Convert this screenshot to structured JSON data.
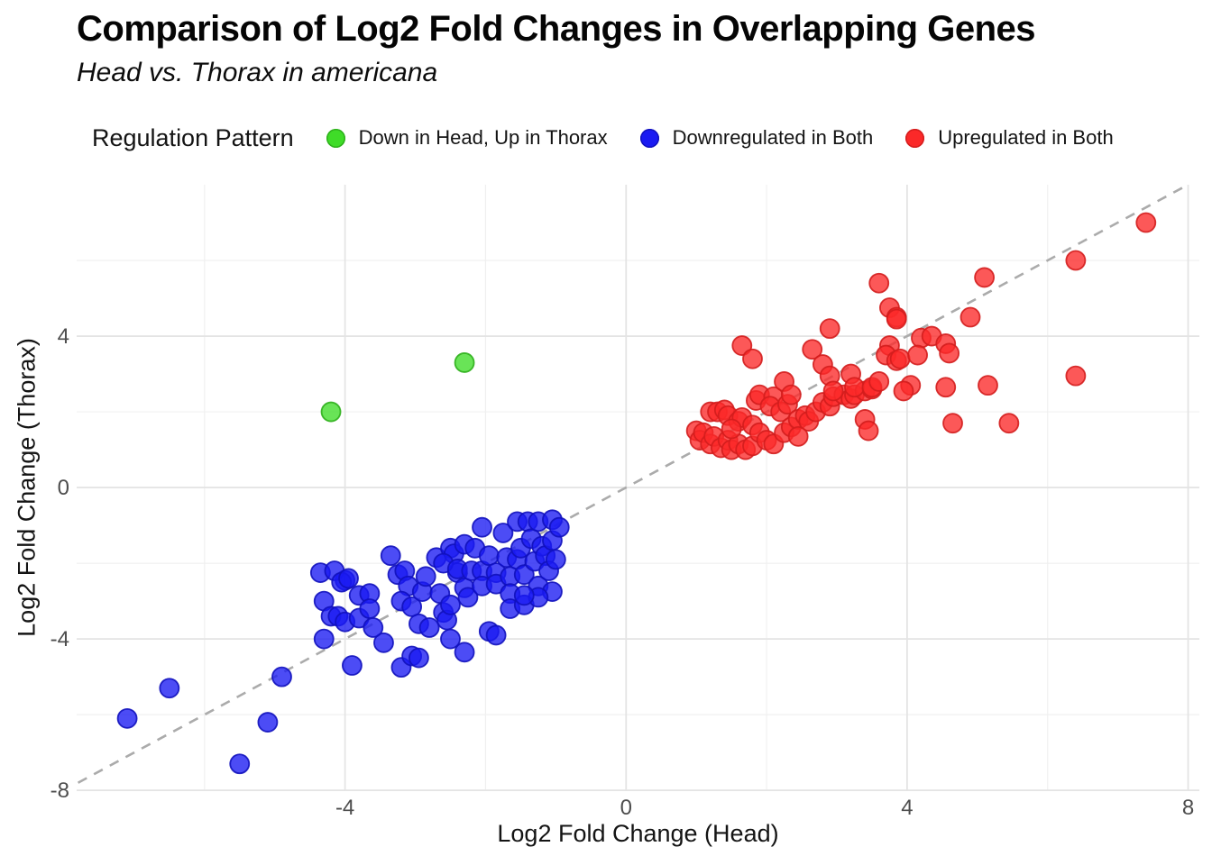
{
  "header": {
    "title": "Comparison of Log2 Fold Changes in Overlapping Genes",
    "subtitle": "Head vs. Thorax in americana"
  },
  "legend": {
    "title": "Regulation Pattern"
  },
  "axes": {
    "x_title": "Log2 Fold Change (Head)",
    "y_title": "Log2 Fold Change (Thorax)"
  },
  "chart_data": {
    "type": "scatter",
    "title": "Comparison of Log2 Fold Changes in Overlapping Genes",
    "subtitle": "Head vs. Thorax in americana",
    "xlabel": "Log2 Fold Change (Head)",
    "ylabel": "Log2 Fold Change (Thorax)",
    "xlim": [
      -7.82,
      8.16
    ],
    "ylim": [
      -8.02,
      8.0
    ],
    "x_ticks": [
      -4,
      0,
      4,
      8
    ],
    "y_ticks": [
      -8,
      -4,
      0,
      4
    ],
    "x_minor_gridlines": [
      -6,
      -2,
      2,
      6
    ],
    "y_minor_gridlines": [
      -6,
      -2,
      2,
      6
    ],
    "grid": true,
    "legend_title": "Regulation Pattern",
    "legend_position": "top",
    "background_color": "#ffffff",
    "major_grid_color": "#e4e4e4",
    "minor_grid_color": "#f0f0f0",
    "reference_line": {
      "type": "identity",
      "slope": 1,
      "intercept": 0,
      "style": "dashed",
      "color": "#ababab"
    },
    "series": [
      {
        "name": "Down in Head, Up in Thorax",
        "color": "#3fdc28",
        "stroke": "#2daf1b",
        "points": [
          [
            -4.2,
            2.0
          ],
          [
            -2.3,
            3.3
          ]
        ]
      },
      {
        "name": "Downregulated in Both",
        "color": "#1a1af2",
        "stroke": "#1111bd",
        "points": [
          [
            -7.1,
            -6.1
          ],
          [
            -6.5,
            -5.3
          ],
          [
            -5.5,
            -7.3
          ],
          [
            -5.1,
            -6.2
          ],
          [
            -4.9,
            -5.0
          ],
          [
            -4.3,
            -4.0
          ],
          [
            -3.9,
            -4.7
          ],
          [
            -3.2,
            -4.75
          ],
          [
            -3.45,
            -4.1
          ],
          [
            -3.05,
            -4.45
          ],
          [
            -2.95,
            -4.5
          ],
          [
            -2.3,
            -4.35
          ],
          [
            -1.95,
            -3.8
          ],
          [
            -2.5,
            -4.0
          ],
          [
            -4.35,
            -2.25
          ],
          [
            -4.0,
            -2.45
          ],
          [
            -4.3,
            -3.0
          ],
          [
            -4.2,
            -3.4
          ],
          [
            -4.1,
            -3.4
          ],
          [
            -4.0,
            -3.55
          ],
          [
            -3.8,
            -2.85
          ],
          [
            -3.8,
            -3.45
          ],
          [
            -4.15,
            -2.2
          ],
          [
            -4.05,
            -2.5
          ],
          [
            -3.95,
            -2.4
          ],
          [
            -3.65,
            -2.8
          ],
          [
            -3.65,
            -3.2
          ],
          [
            -3.6,
            -3.7
          ],
          [
            -3.35,
            -1.8
          ],
          [
            -3.25,
            -2.3
          ],
          [
            -3.15,
            -2.2
          ],
          [
            -3.1,
            -2.6
          ],
          [
            -3.2,
            -3.0
          ],
          [
            -3.05,
            -3.15
          ],
          [
            -2.95,
            -3.6
          ],
          [
            -2.9,
            -2.75
          ],
          [
            -2.85,
            -2.35
          ],
          [
            -2.8,
            -3.7
          ],
          [
            -2.7,
            -1.85
          ],
          [
            -2.65,
            -2.8
          ],
          [
            -2.6,
            -3.3
          ],
          [
            -2.55,
            -3.5
          ],
          [
            -2.5,
            -3.1
          ],
          [
            -2.5,
            -1.6
          ],
          [
            -2.45,
            -1.75
          ],
          [
            -2.4,
            -2.25
          ],
          [
            -2.3,
            -1.5
          ],
          [
            -2.3,
            -2.65
          ],
          [
            -2.25,
            -2.9
          ],
          [
            -2.6,
            -2.0
          ],
          [
            -2.4,
            -2.15
          ],
          [
            -2.2,
            -2.2
          ],
          [
            -2.15,
            -1.6
          ],
          [
            -2.05,
            -1.05
          ],
          [
            -2.05,
            -2.2
          ],
          [
            -2.05,
            -2.6
          ],
          [
            -1.95,
            -1.8
          ],
          [
            -1.85,
            -2.25
          ],
          [
            -1.85,
            -2.55
          ],
          [
            -1.85,
            -3.9
          ],
          [
            -1.75,
            -1.2
          ],
          [
            -1.7,
            -1.85
          ],
          [
            -1.65,
            -2.35
          ],
          [
            -1.65,
            -2.8
          ],
          [
            -1.65,
            -3.2
          ],
          [
            -1.55,
            -0.9
          ],
          [
            -1.55,
            -1.9
          ],
          [
            -1.5,
            -1.6
          ],
          [
            -1.45,
            -2.3
          ],
          [
            -1.45,
            -3.1
          ],
          [
            -1.4,
            -0.9
          ],
          [
            -1.35,
            -1.35
          ],
          [
            -1.3,
            -1.95
          ],
          [
            -1.25,
            -2.6
          ],
          [
            -1.25,
            -0.9
          ],
          [
            -1.2,
            -1.55
          ],
          [
            -1.15,
            -1.8
          ],
          [
            -1.1,
            -2.2
          ],
          [
            -1.05,
            -0.85
          ],
          [
            -1.05,
            -1.4
          ],
          [
            -1.0,
            -1.9
          ],
          [
            -1.05,
            -2.75
          ],
          [
            -0.95,
            -1.05
          ],
          [
            -1.25,
            -2.9
          ],
          [
            -1.45,
            -2.85
          ]
        ]
      },
      {
        "name": "Upregulated in Both",
        "color": "#fb2929",
        "stroke": "#d31d1d",
        "points": [
          [
            1.0,
            1.5
          ],
          [
            1.05,
            1.25
          ],
          [
            1.1,
            1.45
          ],
          [
            1.2,
            1.15
          ],
          [
            1.25,
            1.35
          ],
          [
            1.35,
            1.05
          ],
          [
            1.45,
            1.25
          ],
          [
            1.5,
            1.0
          ],
          [
            1.6,
            1.15
          ],
          [
            1.7,
            1.0
          ],
          [
            1.8,
            1.1
          ],
          [
            1.2,
            2.0
          ],
          [
            1.3,
            2.0
          ],
          [
            1.4,
            2.05
          ],
          [
            1.45,
            1.9
          ],
          [
            1.6,
            1.75
          ],
          [
            1.65,
            1.85
          ],
          [
            1.8,
            1.65
          ],
          [
            1.5,
            1.55
          ],
          [
            1.85,
            2.3
          ],
          [
            1.9,
            2.45
          ],
          [
            2.1,
            2.4
          ],
          [
            2.05,
            2.15
          ],
          [
            2.2,
            2.0
          ],
          [
            2.3,
            2.2
          ],
          [
            1.9,
            1.45
          ],
          [
            2.0,
            1.25
          ],
          [
            2.1,
            1.15
          ],
          [
            2.25,
            1.45
          ],
          [
            2.35,
            1.6
          ],
          [
            2.45,
            1.8
          ],
          [
            2.55,
            1.9
          ],
          [
            2.6,
            1.75
          ],
          [
            2.45,
            1.35
          ],
          [
            2.7,
            2.0
          ],
          [
            2.8,
            2.25
          ],
          [
            2.9,
            2.15
          ],
          [
            2.95,
            2.4
          ],
          [
            3.1,
            2.45
          ],
          [
            3.2,
            2.35
          ],
          [
            3.25,
            2.45
          ],
          [
            3.4,
            2.55
          ],
          [
            3.5,
            2.6
          ],
          [
            3.4,
            1.8
          ],
          [
            3.45,
            1.5
          ],
          [
            1.65,
            3.75
          ],
          [
            1.8,
            3.4
          ],
          [
            2.9,
            4.2
          ],
          [
            2.65,
            3.65
          ],
          [
            2.8,
            3.25
          ],
          [
            2.25,
            2.8
          ],
          [
            2.35,
            2.45
          ],
          [
            2.9,
            2.95
          ],
          [
            2.95,
            2.55
          ],
          [
            3.2,
            3.0
          ],
          [
            3.25,
            2.65
          ],
          [
            3.5,
            2.65
          ],
          [
            3.6,
            2.8
          ],
          [
            3.75,
            3.75
          ],
          [
            3.7,
            3.5
          ],
          [
            3.85,
            3.35
          ],
          [
            3.9,
            3.4
          ],
          [
            4.05,
            2.7
          ],
          [
            4.2,
            3.95
          ],
          [
            4.35,
            4.0
          ],
          [
            4.55,
            3.8
          ],
          [
            4.6,
            3.55
          ],
          [
            4.15,
            3.5
          ],
          [
            3.95,
            2.55
          ],
          [
            4.55,
            2.65
          ],
          [
            5.15,
            2.7
          ],
          [
            6.4,
            2.95
          ],
          [
            4.65,
            1.7
          ],
          [
            5.45,
            1.7
          ],
          [
            3.6,
            5.4
          ],
          [
            3.75,
            4.75
          ],
          [
            3.85,
            4.5
          ],
          [
            5.1,
            5.55
          ],
          [
            4.9,
            4.5
          ],
          [
            6.4,
            6.0
          ],
          [
            7.4,
            7.0
          ],
          [
            3.85,
            4.45
          ]
        ]
      }
    ]
  }
}
